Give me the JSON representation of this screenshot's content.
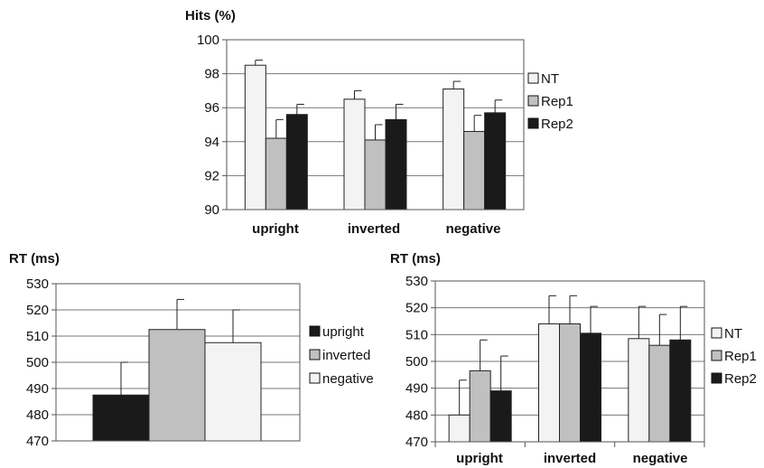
{
  "chart_data": [
    {
      "type": "bar",
      "ylabel": "Hits (%)",
      "ylim": [
        90,
        100
      ],
      "ytick_step": 2,
      "categories": [
        "upright",
        "inverted",
        "negative"
      ],
      "series": [
        {
          "name": "NT",
          "color": "#f3f3f3",
          "values": [
            98.5,
            96.5,
            97.1
          ],
          "errors": [
            0.3,
            0.5,
            0.45
          ]
        },
        {
          "name": "Rep1",
          "color": "#c0c0c0",
          "values": [
            94.2,
            94.1,
            94.6
          ],
          "errors": [
            1.1,
            0.9,
            0.95
          ]
        },
        {
          "name": "Rep2",
          "color": "#1a1a1a",
          "values": [
            95.6,
            95.3,
            95.7
          ],
          "errors": [
            0.6,
            0.9,
            0.75
          ]
        }
      ],
      "grid": true,
      "legend_position": "right"
    },
    {
      "type": "bar",
      "ylabel": "RT (ms)",
      "ylim": [
        470,
        530
      ],
      "ytick_step": 10,
      "categories": [
        "upright",
        "inverted",
        "negative"
      ],
      "values": [
        487.5,
        512.5,
        507.5
      ],
      "errors": [
        12.5,
        11.5,
        12.5
      ],
      "colors": [
        "#1a1a1a",
        "#c0c0c0",
        "#f3f3f3"
      ],
      "grid": true,
      "legend_position": "right"
    },
    {
      "type": "bar",
      "ylabel": "RT (ms)",
      "ylim": [
        470,
        530
      ],
      "ytick_step": 10,
      "categories": [
        "upright",
        "inverted",
        "negative"
      ],
      "series": [
        {
          "name": "NT",
          "color": "#f3f3f3",
          "values": [
            480,
            514,
            508.5
          ],
          "errors": [
            13,
            10.5,
            12
          ]
        },
        {
          "name": "Rep1",
          "color": "#c0c0c0",
          "values": [
            496.5,
            514,
            506
          ],
          "errors": [
            11.5,
            10.5,
            11.5
          ]
        },
        {
          "name": "Rep2",
          "color": "#1a1a1a",
          "values": [
            489,
            510.5,
            508
          ],
          "errors": [
            13,
            10,
            12.5
          ]
        }
      ],
      "grid": true,
      "legend_position": "right"
    }
  ]
}
